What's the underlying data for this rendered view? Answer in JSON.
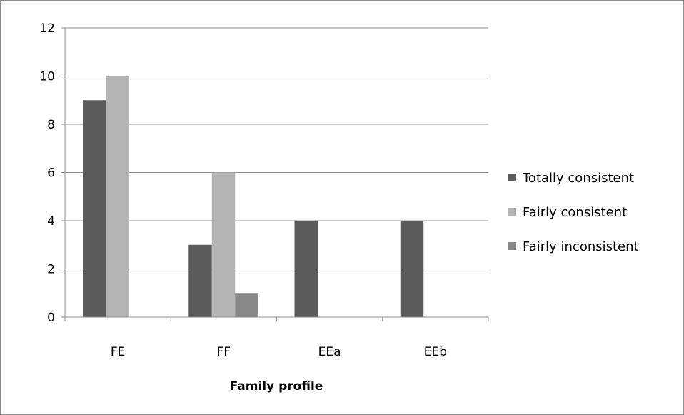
{
  "chart_data": {
    "type": "bar",
    "categories": [
      "FE",
      "FF",
      "EEa",
      "EEb"
    ],
    "series": [
      {
        "name": "Totally consistent",
        "values": [
          9,
          3,
          4,
          4
        ],
        "color": "#5b5b5b"
      },
      {
        "name": "Fairly consistent",
        "values": [
          10,
          6,
          0,
          0
        ],
        "color": "#b4b4b4"
      },
      {
        "name": "Fairly inconsistent",
        "values": [
          0,
          1,
          0,
          0
        ],
        "color": "#878787"
      }
    ],
    "title": "",
    "xlabel": "Family profile",
    "ylabel": "",
    "ylim": [
      0,
      12
    ],
    "yticks": [
      "0",
      "2",
      "4",
      "6",
      "8",
      "10",
      "12"
    ],
    "grid": true,
    "legend_position": "right"
  }
}
